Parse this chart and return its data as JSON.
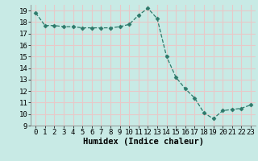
{
  "x": [
    0,
    1,
    2,
    3,
    4,
    5,
    6,
    7,
    8,
    9,
    10,
    11,
    12,
    13,
    14,
    15,
    16,
    17,
    18,
    19,
    20,
    21,
    22,
    23
  ],
  "y": [
    18.8,
    17.7,
    17.7,
    17.6,
    17.6,
    17.5,
    17.5,
    17.5,
    17.5,
    17.6,
    17.8,
    18.6,
    19.2,
    18.3,
    15.0,
    13.2,
    12.2,
    11.4,
    10.1,
    9.6,
    10.3,
    10.4,
    10.5,
    10.8
  ],
  "line_color": "#2d7a6b",
  "marker": "D",
  "marker_size": 2.5,
  "bg_color": "#c8eae5",
  "grid_color": "#e8c8c8",
  "xlabel": "Humidex (Indice chaleur)",
  "ylim": [
    9,
    19.5
  ],
  "xlim": [
    -0.5,
    23.5
  ],
  "yticks": [
    9,
    10,
    11,
    12,
    13,
    14,
    15,
    16,
    17,
    18,
    19
  ],
  "xticks": [
    0,
    1,
    2,
    3,
    4,
    5,
    6,
    7,
    8,
    9,
    10,
    11,
    12,
    13,
    14,
    15,
    16,
    17,
    18,
    19,
    20,
    21,
    22,
    23
  ],
  "xlabel_fontsize": 7.5,
  "tick_fontsize": 6.5
}
